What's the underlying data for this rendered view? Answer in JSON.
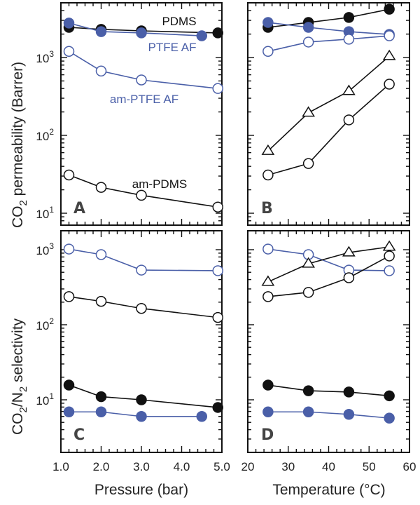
{
  "colors": {
    "black": "#111111",
    "blue": "#4a5fa8"
  },
  "chart_data": [
    {
      "panel": "A",
      "type": "scatter",
      "xlabel": "",
      "ylabel": "CO2 permeability (Barrer)",
      "yscale": "log",
      "xlim": [
        1.0,
        5.0
      ],
      "ylim": [
        7,
        5000
      ],
      "yticks": [
        {
          "value": 10,
          "base": "10",
          "exp": "1"
        },
        {
          "value": 100,
          "base": "10",
          "exp": "2"
        },
        {
          "value": 1000,
          "base": "10",
          "exp": "3"
        }
      ],
      "series": [
        {
          "name": "PDMS",
          "color": "black",
          "marker": "filled-circle",
          "x": [
            1.2,
            2.0,
            3.0,
            4.9
          ],
          "y": [
            2440,
            2300,
            2200,
            2070
          ]
        },
        {
          "name": "PTFE AF",
          "color": "blue",
          "marker": "filled-circle",
          "x": [
            1.2,
            2.0,
            3.0,
            4.5
          ],
          "y": [
            2770,
            2150,
            2070,
            1900
          ]
        },
        {
          "name": "am-PTFE AF",
          "color": "blue",
          "marker": "open-circle",
          "x": [
            1.2,
            2.0,
            3.0,
            4.9
          ],
          "y": [
            1200,
            670,
            515,
            400
          ]
        },
        {
          "name": "am-PDMS",
          "color": "black",
          "marker": "open-circle",
          "x": [
            1.2,
            2.0,
            3.0,
            4.9
          ],
          "y": [
            31,
            21.5,
            17,
            12
          ]
        }
      ],
      "annotations": [
        {
          "text": "PDMS",
          "color": "black"
        },
        {
          "text": "PTFE AF",
          "color": "blue"
        },
        {
          "text": "am-PTFE AF",
          "color": "blue"
        },
        {
          "text": "am-PDMS",
          "color": "black"
        }
      ]
    },
    {
      "panel": "B",
      "type": "scatter",
      "xlabel": "",
      "ylabel": "",
      "yscale": "log",
      "xlim": [
        20,
        60
      ],
      "ylim": [
        7,
        5000
      ],
      "series": [
        {
          "name": "PDMS",
          "color": "black",
          "marker": "filled-circle",
          "x": [
            25,
            35,
            45,
            55
          ],
          "y": [
            2440,
            2820,
            3270,
            4170
          ]
        },
        {
          "name": "PTFE AF",
          "color": "blue",
          "marker": "filled-circle",
          "x": [
            25,
            35,
            45,
            55
          ],
          "y": [
            2820,
            2440,
            2150,
            1980
          ]
        },
        {
          "name": "am-PTFE AF",
          "color": "blue",
          "marker": "open-circle",
          "x": [
            25,
            35,
            45,
            55
          ],
          "y": [
            1200,
            1580,
            1720,
            1900
          ]
        },
        {
          "name": "triangle series",
          "color": "black",
          "marker": "open-triangle",
          "x": [
            25,
            35,
            45,
            55
          ],
          "y": [
            63,
            195,
            370,
            1040
          ]
        },
        {
          "name": "am-PDMS",
          "color": "black",
          "marker": "open-circle",
          "x": [
            25,
            35,
            45,
            55
          ],
          "y": [
            31,
            43.5,
            158,
            455
          ]
        }
      ]
    },
    {
      "panel": "C",
      "type": "scatter",
      "xlabel": "Pressure (bar)",
      "ylabel": "CO2/N2 selectivity",
      "yscale": "log",
      "xlim": [
        1.0,
        5.0
      ],
      "ylim": [
        2,
        1780
      ],
      "xticks": [
        "1.0",
        "2.0",
        "3.0",
        "4.0",
        "5.0"
      ],
      "yticks": [
        {
          "value": 10,
          "base": "10",
          "exp": "1"
        },
        {
          "value": 100,
          "base": "10",
          "exp": "2"
        },
        {
          "value": 1000,
          "base": "10",
          "exp": "3"
        }
      ],
      "series": [
        {
          "name": "am-PTFE AF",
          "color": "blue",
          "marker": "open-circle",
          "x": [
            1.2,
            2.0,
            3.0,
            4.9
          ],
          "y": [
            1020,
            860,
            535,
            525
          ]
        },
        {
          "name": "am-PDMS",
          "color": "black",
          "marker": "open-circle",
          "x": [
            1.2,
            2.0,
            3.0,
            4.9
          ],
          "y": [
            237,
            205,
            165,
            125
          ]
        },
        {
          "name": "PDMS",
          "color": "black",
          "marker": "filled-circle",
          "x": [
            1.2,
            2.0,
            3.0,
            4.9
          ],
          "y": [
            15.7,
            11,
            10,
            7.9
          ]
        },
        {
          "name": "PTFE AF",
          "color": "blue",
          "marker": "filled-circle",
          "x": [
            1.2,
            2.0,
            3.0,
            4.5
          ],
          "y": [
            6.9,
            6.9,
            6.0,
            6.0
          ]
        }
      ]
    },
    {
      "panel": "D",
      "type": "scatter",
      "xlabel": "Temperature (°C)",
      "ylabel": "",
      "yscale": "log",
      "xlim": [
        20,
        60
      ],
      "ylim": [
        2,
        1780
      ],
      "xticks": [
        "20",
        "30",
        "40",
        "50",
        "60"
      ],
      "series": [
        {
          "name": "am-PTFE AF",
          "color": "blue",
          "marker": "open-circle",
          "x": [
            25,
            35,
            45,
            55
          ],
          "y": [
            1020,
            860,
            535,
            525
          ]
        },
        {
          "name": "triangle series",
          "color": "black",
          "marker": "open-triangle",
          "x": [
            25,
            35,
            45,
            55
          ],
          "y": [
            372,
            650,
            917,
            1090
          ]
        },
        {
          "name": "am-PDMS",
          "color": "black",
          "marker": "open-circle",
          "x": [
            25,
            35,
            45,
            55
          ],
          "y": [
            237,
            270,
            423,
            825
          ]
        },
        {
          "name": "PDMS",
          "color": "black",
          "marker": "filled-circle",
          "x": [
            25,
            35,
            45,
            55
          ],
          "y": [
            15.7,
            13.2,
            12.7,
            11.3
          ]
        },
        {
          "name": "PTFE AF",
          "color": "blue",
          "marker": "filled-circle",
          "x": [
            25,
            35,
            45,
            55
          ],
          "y": [
            6.9,
            6.9,
            6.4,
            5.7
          ]
        }
      ]
    }
  ],
  "labels": {
    "ylabel_top_prefix": "CO",
    "ylabel_top_sub": "2",
    "ylabel_top_suffix": " permeability (Barrer)",
    "ylabel_bottom_co": "CO",
    "ylabel_bottom_sub1": "2",
    "ylabel_bottom_mid": "/N",
    "ylabel_bottom_sub2": "2",
    "ylabel_bottom_suffix": " selectivity",
    "xlabel_left": "Pressure (bar)",
    "xlabel_right": "Temperature (°C)",
    "panel_A": "A",
    "panel_B": "B",
    "panel_C": "C",
    "panel_D": "D"
  }
}
